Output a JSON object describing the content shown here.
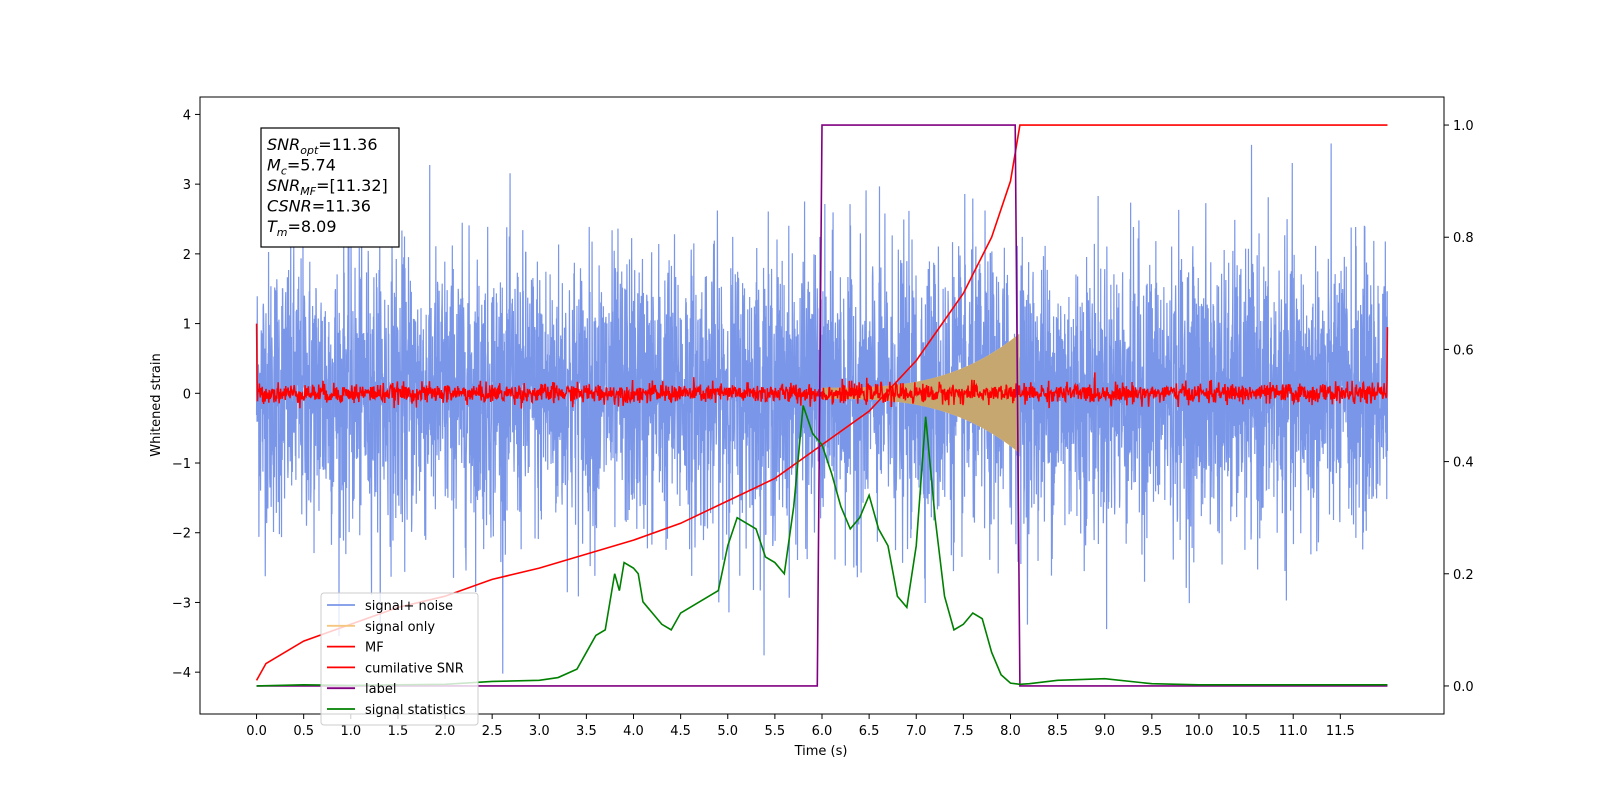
{
  "chart_data": {
    "type": "line",
    "xlabel": "Time (s)",
    "ylabel": "Whitened strain",
    "xlim": [
      -0.6,
      12.6
    ],
    "ylim": [
      -4.6,
      4.25
    ],
    "y2lim": [
      -0.05,
      1.05
    ],
    "x_ticks": [
      "0.0",
      "0.5",
      "1.0",
      "1.5",
      "2.0",
      "2.5",
      "3.0",
      "3.5",
      "4.0",
      "4.5",
      "5.0",
      "5.5",
      "6.0",
      "6.5",
      "7.0",
      "7.5",
      "8.0",
      "8.5",
      "9.0",
      "9.5",
      "10.0",
      "10.5",
      "11.0",
      "11.5"
    ],
    "y_ticks": [
      "4",
      "3",
      "2",
      "1",
      "0",
      "−1",
      "−2",
      "−3",
      "−4"
    ],
    "y2_ticks": [
      "1.0",
      "0.8",
      "0.6",
      "0.4",
      "0.2",
      "0.0"
    ],
    "legend_position": "lower-left",
    "annotation": {
      "lines": [
        {
          "base": "SNR",
          "sub": "opt",
          "rest": "=11.36"
        },
        {
          "base": "M",
          "sub": "c",
          "rest": "=5.74"
        },
        {
          "base": "SNR",
          "sub": "MF",
          "rest": "=[11.32]"
        },
        {
          "base": "CSNR",
          "sub": "",
          "rest": "=11.36"
        },
        {
          "base": "T",
          "sub": "m",
          "rest": "=8.09"
        }
      ]
    },
    "series": [
      {
        "name": "signal+ noise",
        "color": "#7a96e8",
        "axis": "left",
        "t_start": 0.0,
        "t_end": 12.0,
        "amplitude_sd": 1.0
      },
      {
        "name": "signal only",
        "color": "#f5c77e",
        "axis": "left",
        "t_start": 6.0,
        "t_end": 8.09,
        "peak_amplitude": 0.85
      },
      {
        "name": "MF",
        "color": "#ff0000",
        "axis": "left",
        "t_start": 0.0,
        "t_end": 12.0,
        "amplitude_sd": 0.07
      },
      {
        "name": "cumilative SNR",
        "color": "#ff0000",
        "axis": "right",
        "x": [
          0.0,
          0.1,
          0.5,
          1.0,
          1.5,
          2.0,
          2.5,
          3.0,
          3.5,
          4.0,
          4.5,
          5.0,
          5.5,
          6.0,
          6.5,
          7.0,
          7.5,
          7.8,
          8.0,
          8.09,
          8.1,
          12.0
        ],
        "values": [
          0.01,
          0.04,
          0.08,
          0.11,
          0.14,
          0.16,
          0.19,
          0.21,
          0.235,
          0.26,
          0.29,
          0.33,
          0.37,
          0.43,
          0.49,
          0.58,
          0.7,
          0.8,
          0.9,
          0.99,
          1.0,
          1.0
        ]
      },
      {
        "name": "label",
        "color": "#800080",
        "axis": "right",
        "x": [
          0.0,
          5.95,
          6.0,
          8.05,
          8.1,
          12.0
        ],
        "values": [
          0.0,
          0.0,
          1.0,
          1.0,
          0.0,
          0.0
        ]
      },
      {
        "name": "signal statistics",
        "color": "#008000",
        "axis": "right",
        "x": [
          0.0,
          0.5,
          1.0,
          1.5,
          2.0,
          2.5,
          3.0,
          3.2,
          3.4,
          3.5,
          3.6,
          3.7,
          3.8,
          3.85,
          3.9,
          4.0,
          4.05,
          4.1,
          4.15,
          4.2,
          4.3,
          4.4,
          4.5,
          4.6,
          4.7,
          4.8,
          4.9,
          5.0,
          5.1,
          5.2,
          5.3,
          5.4,
          5.5,
          5.6,
          5.7,
          5.8,
          5.9,
          6.0,
          6.1,
          6.2,
          6.3,
          6.4,
          6.5,
          6.6,
          6.7,
          6.8,
          6.9,
          7.0,
          7.1,
          7.2,
          7.3,
          7.4,
          7.5,
          7.6,
          7.7,
          7.8,
          7.9,
          8.0,
          8.1,
          8.2,
          8.5,
          9.0,
          9.5,
          10.0,
          11.0,
          12.0
        ],
        "values": [
          0.0,
          0.002,
          0.001,
          0.002,
          0.003,
          0.008,
          0.01,
          0.015,
          0.03,
          0.06,
          0.09,
          0.1,
          0.2,
          0.17,
          0.22,
          0.21,
          0.2,
          0.15,
          0.14,
          0.13,
          0.11,
          0.1,
          0.13,
          0.14,
          0.15,
          0.16,
          0.17,
          0.25,
          0.3,
          0.29,
          0.28,
          0.23,
          0.22,
          0.2,
          0.32,
          0.5,
          0.45,
          0.43,
          0.38,
          0.32,
          0.28,
          0.3,
          0.34,
          0.28,
          0.25,
          0.16,
          0.14,
          0.25,
          0.48,
          0.3,
          0.16,
          0.1,
          0.11,
          0.13,
          0.12,
          0.06,
          0.02,
          0.005,
          0.003,
          0.004,
          0.01,
          0.013,
          0.004,
          0.002,
          0.002,
          0.002
        ]
      }
    ]
  }
}
